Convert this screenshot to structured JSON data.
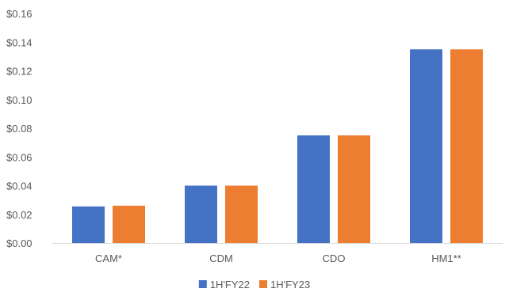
{
  "chart_data": {
    "type": "bar",
    "title": "",
    "xlabel": "",
    "ylabel": "",
    "categories": [
      "CAM*",
      "CDM",
      "CDO",
      "HM1**"
    ],
    "series": [
      {
        "name": "1H'FY22",
        "values": [
          0.0255,
          0.04,
          0.075,
          0.135
        ],
        "color": "#4472C4"
      },
      {
        "name": "1H'FY23",
        "values": [
          0.026,
          0.04,
          0.075,
          0.135
        ],
        "color": "#ED7D31"
      }
    ],
    "ylim": [
      0,
      0.16
    ],
    "yticks": [
      0,
      0.02,
      0.04,
      0.06,
      0.08,
      0.1,
      0.12,
      0.14,
      0.16
    ],
    "ytick_labels": [
      "$0.00",
      "$0.02",
      "$0.04",
      "$0.06",
      "$0.08",
      "$0.10",
      "$0.12",
      "$0.14",
      "$0.16"
    ],
    "grid": false,
    "legend_position": "bottom-center",
    "axis_color": "#D9D9D9"
  }
}
